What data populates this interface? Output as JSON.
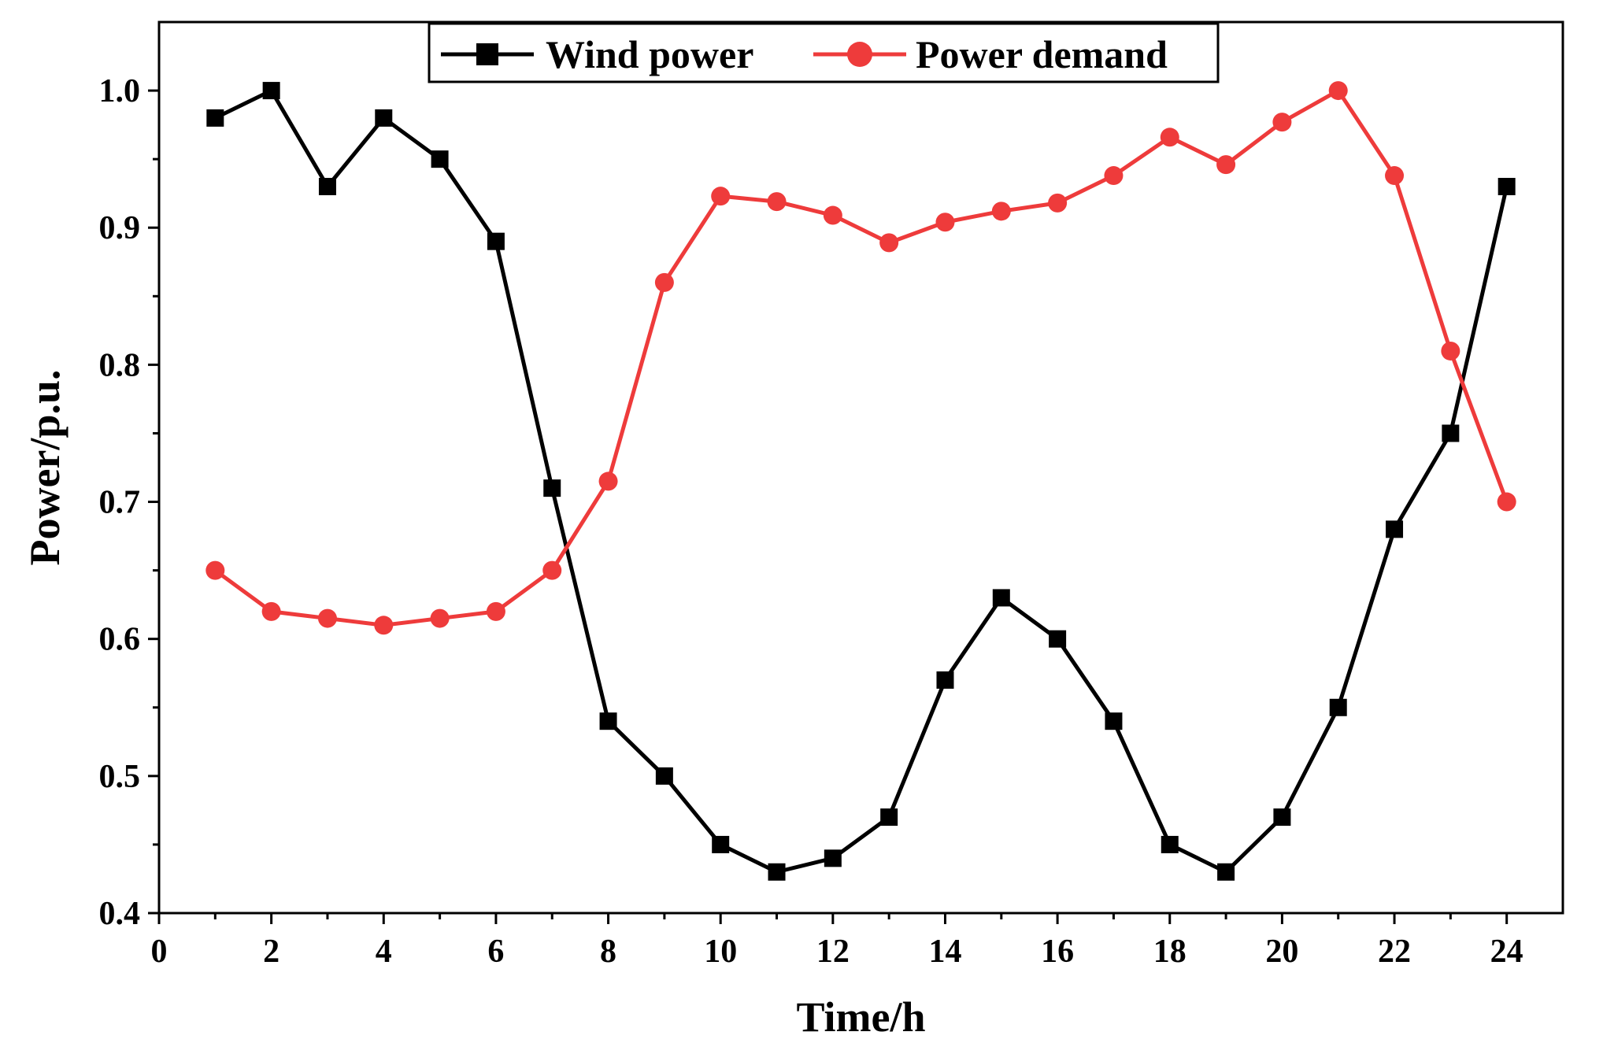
{
  "chart_data": {
    "type": "line",
    "title": "",
    "xlabel": "Time/h",
    "ylabel": "Power/p.u.",
    "xlim": [
      0,
      25
    ],
    "ylim": [
      0.4,
      1.05
    ],
    "xticks": [
      0,
      2,
      4,
      6,
      8,
      10,
      12,
      14,
      16,
      18,
      20,
      22,
      24
    ],
    "xtick_labels": [
      "0",
      "2",
      "4",
      "6",
      "8",
      "10",
      "12",
      "14",
      "16",
      "18",
      "20",
      "22",
      "24"
    ],
    "yticks": [
      0.4,
      0.5,
      0.6,
      0.7,
      0.8,
      0.9,
      1.0
    ],
    "ytick_labels": [
      "0.4",
      "0.5",
      "0.6",
      "0.7",
      "0.8",
      "0.9",
      "1.0"
    ],
    "grid": false,
    "legend_position": "top-center",
    "x": [
      1,
      2,
      3,
      4,
      5,
      6,
      7,
      8,
      9,
      10,
      11,
      12,
      13,
      14,
      15,
      16,
      17,
      18,
      19,
      20,
      21,
      22,
      23,
      24
    ],
    "series": [
      {
        "name": "Wind power",
        "color": "#000000",
        "marker": "square",
        "values": [
          0.98,
          1.0,
          0.93,
          0.98,
          0.95,
          0.89,
          0.71,
          0.54,
          0.5,
          0.45,
          0.43,
          0.44,
          0.47,
          0.57,
          0.63,
          0.6,
          0.54,
          0.45,
          0.43,
          0.47,
          0.55,
          0.68,
          0.75,
          0.93
        ]
      },
      {
        "name": "Power demand",
        "color": "#ee3b3b",
        "marker": "circle",
        "values": [
          0.65,
          0.62,
          0.615,
          0.61,
          0.615,
          0.62,
          0.65,
          0.715,
          0.86,
          0.923,
          0.919,
          0.909,
          0.889,
          0.904,
          0.912,
          0.918,
          0.938,
          0.966,
          0.946,
          0.977,
          1.0,
          0.938,
          0.81,
          0.7
        ]
      }
    ]
  }
}
